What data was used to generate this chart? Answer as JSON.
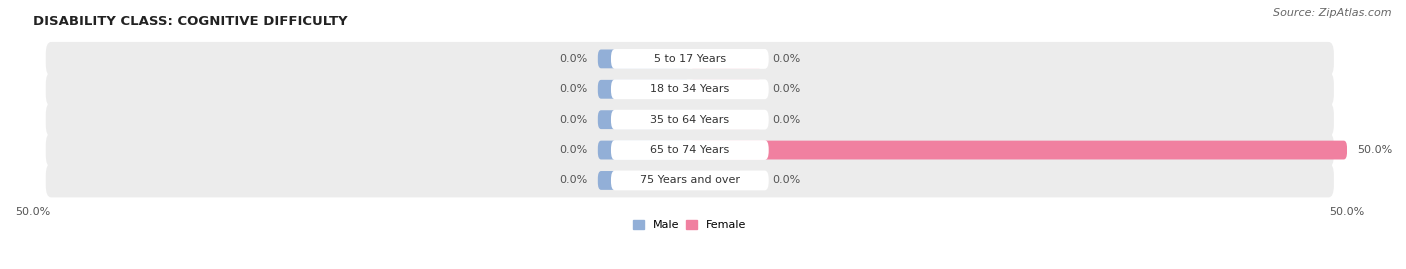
{
  "title": "DISABILITY CLASS: COGNITIVE DIFFICULTY",
  "source": "Source: ZipAtlas.com",
  "categories": [
    "5 to 17 Years",
    "18 to 34 Years",
    "35 to 64 Years",
    "65 to 74 Years",
    "75 Years and over"
  ],
  "male_values": [
    0.0,
    0.0,
    0.0,
    0.0,
    0.0
  ],
  "female_values": [
    0.0,
    0.0,
    0.0,
    50.0,
    0.0
  ],
  "male_color": "#92afd7",
  "female_color": "#f080a0",
  "row_bg_color": "#ececec",
  "male_label": "Male",
  "female_label": "Female",
  "xlim": 50.0,
  "title_fontsize": 9.5,
  "source_fontsize": 8,
  "label_fontsize": 8,
  "value_fontsize": 8,
  "tick_fontsize": 8,
  "background_color": "#ffffff",
  "center_label_color": "#333333",
  "value_label_color": "#555555"
}
